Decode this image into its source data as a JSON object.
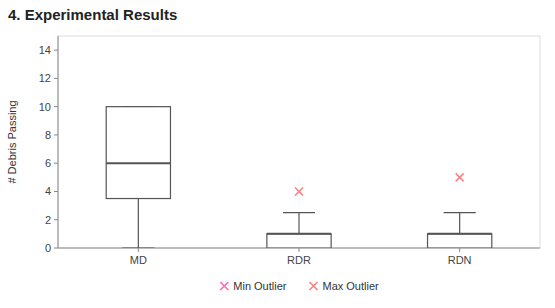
{
  "chart_data": {
    "type": "box",
    "title": "4.  Experimental Results",
    "y_label": "# Debris Passing",
    "categories": [
      "MD",
      "RDR",
      "RDN"
    ],
    "boxes": [
      {
        "q1": 3.5,
        "median": 6.0,
        "q3": 10.0,
        "whislo": 0.0,
        "whishi": 10.0
      },
      {
        "q1": 0.0,
        "median": 1.0,
        "q3": 1.0,
        "whislo": 0.0,
        "whishi": 2.5
      },
      {
        "q1": 0.0,
        "median": 1.0,
        "q3": 1.0,
        "whislo": 0.0,
        "whishi": 2.5
      }
    ],
    "color": "#555555",
    "series": [
      {
        "name": "Min Outlier",
        "color": "#ff69b4",
        "marker": "x",
        "values": [
          null,
          null,
          null
        ]
      },
      {
        "name": "Max Outlier",
        "color": "#ff8080",
        "marker": "x",
        "values": [
          null,
          4.0,
          5.0
        ]
      }
    ],
    "ylim": [
      0,
      15
    ],
    "yticks": [
      0,
      2,
      4,
      6,
      8,
      10,
      12,
      14
    ],
    "legend": "bottom"
  }
}
